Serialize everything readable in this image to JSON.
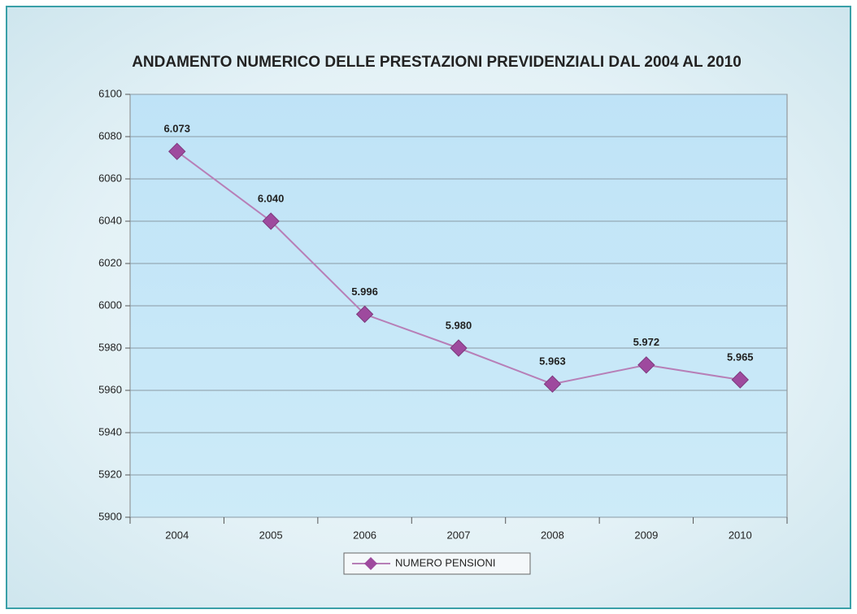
{
  "chart_data": {
    "type": "line",
    "title": "ANDAMENTO NUMERICO DELLE PRESTAZIONI PREVIDENZIALI DAL 2004 AL 2010",
    "categories": [
      "2004",
      "2005",
      "2006",
      "2007",
      "2008",
      "2009",
      "2010"
    ],
    "series": [
      {
        "name": "NUMERO PENSIONI",
        "color": "#9e4a9e",
        "line_color": "#b77fb7",
        "values": [
          6073,
          6040,
          5996,
          5980,
          5963,
          5972,
          5965
        ],
        "value_labels": [
          "6.073",
          "6.040",
          "5.996",
          "5.980",
          "5.963",
          "5.972",
          "5.965"
        ]
      }
    ],
    "ylim": [
      5900,
      6100
    ],
    "yticks": [
      5900,
      5920,
      5940,
      5960,
      5980,
      6000,
      6020,
      6040,
      6060,
      6080,
      6100
    ],
    "grid": true,
    "legend": "bottom"
  }
}
